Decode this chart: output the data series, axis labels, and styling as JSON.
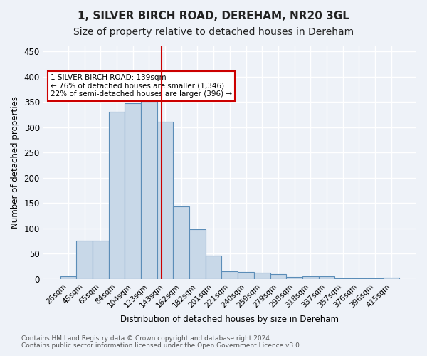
{
  "title1": "1, SILVER BIRCH ROAD, DEREHAM, NR20 3GL",
  "title2": "Size of property relative to detached houses in Dereham",
  "xlabel": "Distribution of detached houses by size in Dereham",
  "ylabel": "Number of detached properties",
  "footnote1": "Contains HM Land Registry data © Crown copyright and database right 2024.",
  "footnote2": "Contains public sector information licensed under the Open Government Licence v3.0.",
  "bar_labels": [
    "26sqm",
    "45sqm",
    "65sqm",
    "84sqm",
    "104sqm",
    "123sqm",
    "143sqm",
    "162sqm",
    "182sqm",
    "201sqm",
    "221sqm",
    "240sqm",
    "259sqm",
    "279sqm",
    "298sqm",
    "318sqm",
    "337sqm",
    "357sqm",
    "376sqm",
    "396sqm",
    "415sqm"
  ],
  "bar_values": [
    6,
    76,
    76,
    330,
    348,
    363,
    311,
    144,
    98,
    46,
    16,
    14,
    12,
    10,
    4,
    6,
    6,
    2,
    1,
    1,
    3
  ],
  "bar_color": "#c8d8e8",
  "bar_edge_color": "#5b8db8",
  "vline_x": 5.77,
  "vline_color": "#cc0000",
  "annotation_text": "1 SILVER BIRCH ROAD: 139sqm\n← 76% of detached houses are smaller (1,346)\n22% of semi-detached houses are larger (396) →",
  "annotation_box_color": "#cc0000",
  "ylim": [
    0,
    460
  ],
  "yticks": [
    0,
    50,
    100,
    150,
    200,
    250,
    300,
    350,
    400,
    450
  ],
  "bg_color": "#eef2f8",
  "plot_bg_color": "#eef2f8",
  "grid_color": "#ffffff",
  "title_fontsize": 11,
  "subtitle_fontsize": 10
}
